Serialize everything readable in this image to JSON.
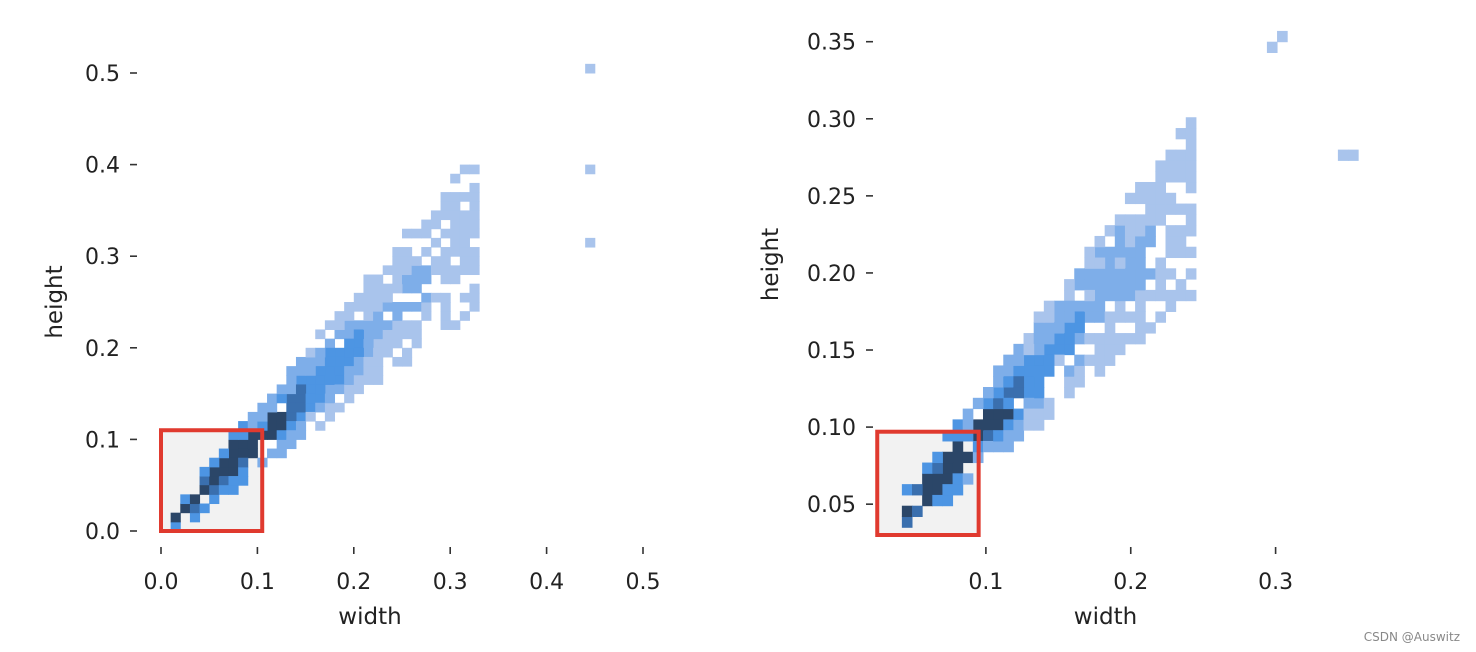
{
  "chart_data": [
    {
      "type": "heatmap",
      "title": "",
      "xlabel": "width",
      "ylabel": "height",
      "xlim": [
        0.0,
        0.5
      ],
      "ylim": [
        0.0,
        0.5
      ],
      "xticks": [
        "0.0",
        "0.1",
        "0.2",
        "0.3",
        "0.4",
        "0.5"
      ],
      "yticks": [
        "0.0",
        "0.1",
        "0.2",
        "0.3",
        "0.4",
        "0.5"
      ],
      "bin_size": 0.01,
      "grid": false,
      "highlight_region": {
        "x": [
          0.0,
          0.105
        ],
        "y": [
          0.0,
          0.11
        ]
      },
      "density": [
        {
          "w": 0.06,
          "h": 0.06,
          "level": 5
        },
        {
          "w": 0.08,
          "h": 0.085,
          "level": 5
        },
        {
          "w": 0.11,
          "h": 0.11,
          "level": 5
        },
        {
          "w": 0.13,
          "h": 0.125,
          "level": 4
        },
        {
          "w": 0.16,
          "h": 0.16,
          "level": 3
        },
        {
          "w": 0.19,
          "h": 0.19,
          "level": 2
        },
        {
          "w": 0.25,
          "h": 0.26,
          "level": 1
        },
        {
          "w": 0.3,
          "h": 0.3,
          "level": 1
        },
        {
          "w": 0.44,
          "h": 0.5,
          "level": 1
        },
        {
          "w": 0.44,
          "h": 0.39,
          "level": 1
        },
        {
          "w": 0.44,
          "h": 0.31,
          "level": 1
        }
      ]
    },
    {
      "type": "heatmap",
      "title": "",
      "xlabel": "width",
      "ylabel": "height",
      "xlim": [
        0.02,
        0.37
      ],
      "ylim": [
        0.03,
        0.355
      ],
      "xticks": [
        "0.1",
        "0.2",
        "0.3"
      ],
      "yticks": [
        "0.05",
        "0.10",
        "0.15",
        "0.20",
        "0.25",
        "0.30",
        "0.35"
      ],
      "bin_size": 0.007,
      "grid": false,
      "highlight_region": {
        "x": [
          0.025,
          0.095
        ],
        "y": [
          0.03,
          0.097
        ]
      },
      "density": [
        {
          "w": 0.06,
          "h": 0.06,
          "level": 5
        },
        {
          "w": 0.075,
          "h": 0.075,
          "level": 5
        },
        {
          "w": 0.1,
          "h": 0.1,
          "level": 5
        },
        {
          "w": 0.12,
          "h": 0.12,
          "level": 3
        },
        {
          "w": 0.15,
          "h": 0.16,
          "level": 2
        },
        {
          "w": 0.18,
          "h": 0.2,
          "level": 2
        },
        {
          "w": 0.3,
          "h": 0.35,
          "level": 1
        },
        {
          "w": 0.35,
          "h": 0.27,
          "level": 1
        }
      ]
    }
  ],
  "colors": {
    "cell_levels": [
      "#f2f2f2",
      "#a9c4ec",
      "#7eaee9",
      "#4d95e3",
      "#3a6fae",
      "#2b4668"
    ],
    "highlight_box": "#e03a2f",
    "text": "#222222"
  },
  "watermark": "CSDN @Auswitz"
}
